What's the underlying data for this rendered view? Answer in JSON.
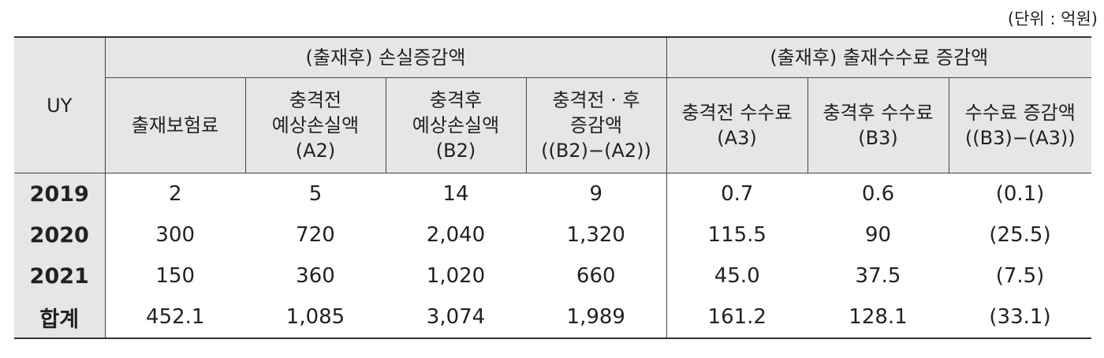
{
  "unit": "(단위 : 억원)",
  "header": {
    "uy": "UY",
    "group1": "(출재후) 손실증감액",
    "group2": "(출재후) 출재수수료 증감액",
    "columns": [
      [
        "출재보험료"
      ],
      [
        "충격전",
        "예상손실액",
        "(A2)"
      ],
      [
        "충격후",
        "예상손실액",
        "(B2)"
      ],
      [
        "충격전 · 후",
        "증감액",
        "((B2)−(A2))"
      ],
      [
        "충격전 수수료",
        "(A3)"
      ],
      [
        "충격후 수수료",
        "(B3)"
      ],
      [
        "수수료 증감액",
        "((B3)−(A3))"
      ]
    ]
  },
  "rows": [
    {
      "year": "2019",
      "cells": [
        "2",
        "5",
        "14",
        "9",
        "0.7",
        "0.6",
        "(0.1)"
      ]
    },
    {
      "year": "2020",
      "cells": [
        "300",
        "720",
        "2,040",
        "1,320",
        "115.5",
        "90",
        "(25.5)"
      ]
    },
    {
      "year": "2021",
      "cells": [
        "150",
        "360",
        "1,020",
        "660",
        "45.0",
        "37.5",
        "(7.5)"
      ]
    },
    {
      "year": "합계",
      "cells": [
        "452.1",
        "1,085",
        "3,074",
        "1,989",
        "161.2",
        "128.1",
        "(33.1)"
      ]
    }
  ]
}
